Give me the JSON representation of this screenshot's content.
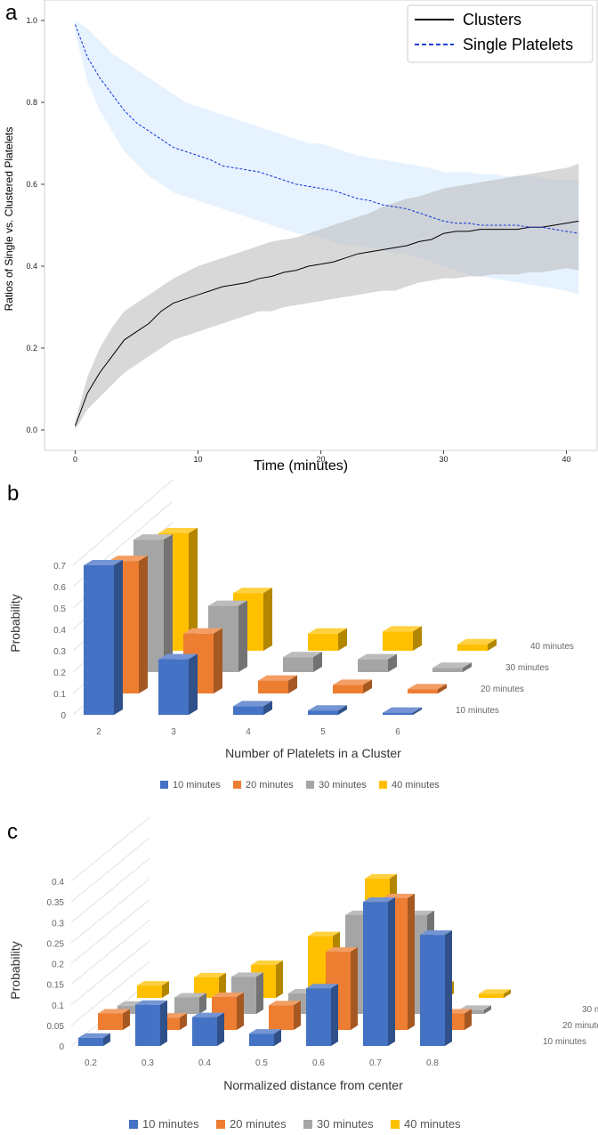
{
  "chart_data": [
    {
      "panel": "a",
      "type": "line",
      "xlabel": "Time (minutes)",
      "ylabel": "Ratios of Single vs. Clustered Platelets",
      "xlim": [
        -2.5,
        42.5
      ],
      "ylim": [
        -0.05,
        1.05
      ],
      "xticks": [
        "0",
        "10",
        "20",
        "30",
        "40"
      ],
      "yticks": [
        "0.0",
        "0.2",
        "0.4",
        "0.6",
        "0.8",
        "1.0"
      ],
      "legend_position": "top-right",
      "x": [
        0,
        1,
        2,
        3,
        4,
        5,
        6,
        7,
        8,
        9,
        10,
        11,
        12,
        13,
        14,
        15,
        16,
        17,
        18,
        19,
        20,
        21,
        22,
        23,
        24,
        25,
        26,
        27,
        28,
        29,
        30,
        31,
        32,
        33,
        34,
        35,
        36,
        37,
        38,
        39,
        40,
        41
      ],
      "series": [
        {
          "name": "Clusters",
          "style": "solid",
          "color": "#000000",
          "band_color": "#b8b8b8",
          "values": [
            0.01,
            0.09,
            0.14,
            0.18,
            0.22,
            0.24,
            0.26,
            0.29,
            0.31,
            0.32,
            0.33,
            0.34,
            0.35,
            0.355,
            0.36,
            0.37,
            0.375,
            0.385,
            0.39,
            0.4,
            0.405,
            0.41,
            0.42,
            0.43,
            0.435,
            0.44,
            0.445,
            0.45,
            0.46,
            0.465,
            0.48,
            0.485,
            0.485,
            0.49,
            0.49,
            0.49,
            0.49,
            0.495,
            0.495,
            0.5,
            0.505,
            0.51
          ],
          "upper": [
            0.02,
            0.13,
            0.2,
            0.25,
            0.29,
            0.31,
            0.33,
            0.35,
            0.37,
            0.385,
            0.4,
            0.41,
            0.42,
            0.43,
            0.44,
            0.45,
            0.46,
            0.465,
            0.47,
            0.48,
            0.49,
            0.5,
            0.51,
            0.52,
            0.53,
            0.545,
            0.555,
            0.565,
            0.57,
            0.58,
            0.59,
            0.595,
            0.6,
            0.605,
            0.61,
            0.615,
            0.62,
            0.625,
            0.63,
            0.635,
            0.64,
            0.65
          ],
          "lower": [
            0.0,
            0.05,
            0.08,
            0.11,
            0.14,
            0.16,
            0.18,
            0.2,
            0.22,
            0.23,
            0.24,
            0.25,
            0.26,
            0.27,
            0.28,
            0.29,
            0.29,
            0.3,
            0.305,
            0.31,
            0.315,
            0.32,
            0.325,
            0.33,
            0.335,
            0.34,
            0.34,
            0.35,
            0.36,
            0.365,
            0.37,
            0.37,
            0.375,
            0.375,
            0.38,
            0.38,
            0.38,
            0.385,
            0.385,
            0.39,
            0.395,
            0.39
          ]
        },
        {
          "name": "Single Platelets",
          "style": "dashed",
          "color": "#1f3fd6",
          "band_color": "#dbeeff",
          "values": [
            0.99,
            0.91,
            0.86,
            0.82,
            0.78,
            0.75,
            0.73,
            0.71,
            0.69,
            0.68,
            0.67,
            0.66,
            0.645,
            0.64,
            0.635,
            0.63,
            0.62,
            0.61,
            0.6,
            0.595,
            0.59,
            0.585,
            0.575,
            0.565,
            0.56,
            0.55,
            0.545,
            0.54,
            0.53,
            0.52,
            0.51,
            0.505,
            0.505,
            0.5,
            0.5,
            0.5,
            0.5,
            0.495,
            0.495,
            0.49,
            0.485,
            0.48
          ],
          "upper": [
            1.0,
            0.98,
            0.95,
            0.92,
            0.9,
            0.88,
            0.86,
            0.84,
            0.82,
            0.8,
            0.79,
            0.78,
            0.77,
            0.76,
            0.75,
            0.74,
            0.73,
            0.72,
            0.71,
            0.7,
            0.7,
            0.69,
            0.68,
            0.67,
            0.665,
            0.66,
            0.655,
            0.65,
            0.645,
            0.64,
            0.63,
            0.63,
            0.63,
            0.625,
            0.625,
            0.62,
            0.62,
            0.62,
            0.615,
            0.61,
            0.61,
            0.61
          ],
          "lower": [
            0.97,
            0.85,
            0.78,
            0.73,
            0.68,
            0.65,
            0.62,
            0.6,
            0.58,
            0.57,
            0.56,
            0.55,
            0.54,
            0.53,
            0.52,
            0.51,
            0.5,
            0.49,
            0.48,
            0.475,
            0.47,
            0.46,
            0.45,
            0.45,
            0.445,
            0.44,
            0.43,
            0.43,
            0.42,
            0.41,
            0.4,
            0.39,
            0.38,
            0.375,
            0.37,
            0.365,
            0.36,
            0.355,
            0.35,
            0.345,
            0.34,
            0.33
          ]
        }
      ]
    },
    {
      "panel": "b",
      "type": "bar",
      "style": "3d",
      "xlabel": "Number of Platelets in a Cluster",
      "ylabel": "Probability",
      "ylim": [
        0,
        0.7
      ],
      "yticks": [
        "0",
        "0.1",
        "0.2",
        "0.3",
        "0.4",
        "0.5",
        "0.6",
        "0.7"
      ],
      "categories": [
        "2",
        "3",
        "4",
        "5",
        "6"
      ],
      "legend_position": "bottom",
      "series": [
        {
          "name": "10 minutes",
          "depth_label": "10 minutes",
          "color": "#4472c4",
          "values": [
            0.7,
            0.26,
            0.04,
            0.02,
            0.01
          ]
        },
        {
          "name": "20 minutes",
          "depth_label": "20 minutes",
          "color": "#ed7d31",
          "values": [
            0.62,
            0.28,
            0.06,
            0.04,
            0.02
          ]
        },
        {
          "name": "30 minutes",
          "depth_label": "30 minutes",
          "color": "#a5a5a5",
          "values": [
            0.62,
            0.31,
            0.07,
            0.06,
            0.02
          ]
        },
        {
          "name": "40 minutes",
          "depth_label": "40 minutes",
          "color": "#ffc000",
          "values": [
            0.55,
            0.27,
            0.08,
            0.09,
            0.03
          ]
        }
      ]
    },
    {
      "panel": "c",
      "type": "bar",
      "style": "3d",
      "xlabel": "Normalized distance from center",
      "ylabel": "Probability",
      "ylim": [
        0,
        0.4
      ],
      "yticks": [
        "0",
        "0.05",
        "0.1",
        "0.15",
        "0.2",
        "0.25",
        "0.3",
        "0.35",
        "0.4"
      ],
      "categories": [
        "0.2",
        "0.3",
        "0.4",
        "0.5",
        "0.6",
        "0.7",
        "0.8"
      ],
      "legend_position": "bottom",
      "series": [
        {
          "name": "10 minutes",
          "depth_label": "10 minutes",
          "color": "#4472c4",
          "values": [
            0.02,
            0.1,
            0.07,
            0.03,
            0.14,
            0.35,
            0.27
          ]
        },
        {
          "name": "20 minutes",
          "depth_label": "20 minutes",
          "color": "#ed7d31",
          "values": [
            0.04,
            0.03,
            0.08,
            0.06,
            0.19,
            0.32,
            0.04
          ]
        },
        {
          "name": "30 minutes",
          "depth_label": "30 minutes",
          "color": "#a5a5a5",
          "values": [
            0.02,
            0.04,
            0.09,
            0.05,
            0.24,
            0.24,
            0.01
          ]
        },
        {
          "name": "40 minutes",
          "depth_label": "40 minutes",
          "color": "#ffc000",
          "values": [
            0.03,
            0.05,
            0.08,
            0.15,
            0.29,
            0.03,
            0.01
          ]
        }
      ]
    }
  ]
}
